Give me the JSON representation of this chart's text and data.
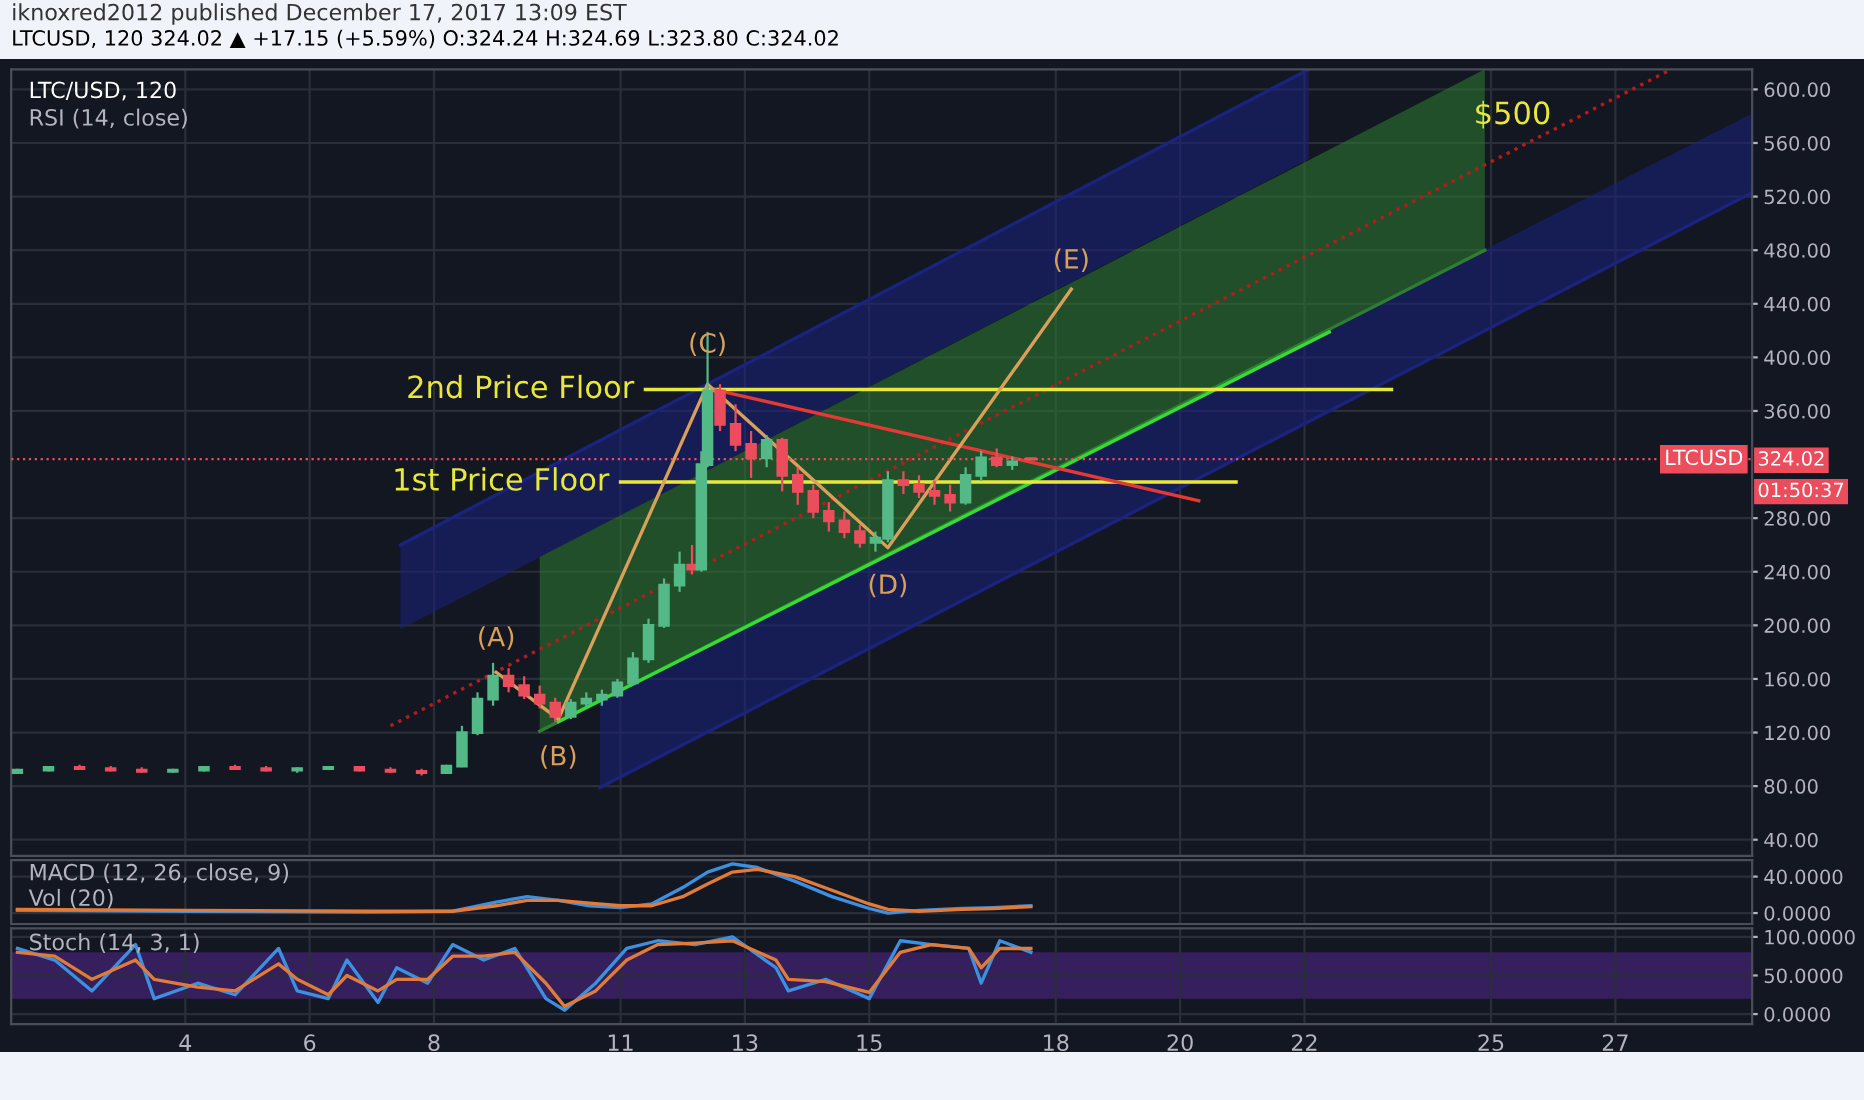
{
  "chart_data": [
    {
      "type": "candlestick",
      "title": "iknoxred2012 published December 17, 2017 13:09 EST",
      "subtitle": "LTCUSD, 120 324.02 ▲ +17.15 (+5.59%) O:324.24 H:324.69 L:323.80 C:324.02",
      "x": [
        1.3,
        1.8,
        2.3,
        2.8,
        3.3,
        3.8,
        4.3,
        4.8,
        5.3,
        5.8,
        6.3,
        6.8,
        7.3,
        7.8,
        8.2,
        8.45,
        8.7,
        8.95,
        9.2,
        9.45,
        9.7,
        9.95,
        10.2,
        10.45,
        10.7,
        10.95,
        11.2,
        11.45,
        11.7,
        11.95,
        12.15,
        12.3,
        12.4,
        12.6,
        12.85,
        13.1,
        13.35,
        13.6,
        13.85,
        14.1,
        14.35,
        14.6,
        14.85,
        15.1,
        15.3,
        15.55,
        15.8,
        16.05,
        16.3,
        16.55,
        16.8,
        17.05,
        17.3,
        17.6
      ],
      "ohlc": [
        [
          90,
          93,
          89,
          92
        ],
        [
          92,
          95,
          91,
          94
        ],
        [
          94,
          96,
          92,
          93
        ],
        [
          93,
          95,
          91,
          92
        ],
        [
          92,
          94,
          90,
          91
        ],
        [
          91,
          93,
          90,
          92
        ],
        [
          92,
          95,
          91,
          94
        ],
        [
          94,
          96,
          92,
          93
        ],
        [
          93,
          95,
          91,
          92
        ],
        [
          92,
          94,
          90,
          93
        ],
        [
          93,
          95,
          92,
          94
        ],
        [
          94,
          95,
          91,
          92
        ],
        [
          92,
          94,
          90,
          91
        ],
        [
          91,
          93,
          88,
          90
        ],
        [
          90,
          96,
          89,
          95
        ],
        [
          95,
          125,
          94,
          120
        ],
        [
          120,
          150,
          118,
          145
        ],
        [
          145,
          172,
          140,
          162
        ],
        [
          162,
          168,
          150,
          155
        ],
        [
          155,
          162,
          145,
          148
        ],
        [
          148,
          155,
          138,
          142
        ],
        [
          142,
          146,
          128,
          132
        ],
        [
          132,
          145,
          130,
          142
        ],
        [
          142,
          150,
          138,
          145
        ],
        [
          145,
          152,
          140,
          148
        ],
        [
          148,
          160,
          146,
          157
        ],
        [
          157,
          180,
          155,
          175
        ],
        [
          175,
          205,
          172,
          200
        ],
        [
          200,
          235,
          198,
          230
        ],
        [
          230,
          255,
          225,
          245
        ],
        [
          245,
          260,
          238,
          242
        ],
        [
          242,
          330,
          240,
          320
        ],
        [
          320,
          419,
          318,
          375
        ],
        [
          375,
          380,
          345,
          350
        ],
        [
          350,
          365,
          330,
          335
        ],
        [
          335,
          345,
          310,
          325
        ],
        [
          325,
          342,
          318,
          338
        ],
        [
          338,
          340,
          300,
          312
        ],
        [
          312,
          318,
          290,
          300
        ],
        [
          300,
          305,
          280,
          285
        ],
        [
          285,
          292,
          270,
          278
        ],
        [
          278,
          285,
          265,
          270
        ],
        [
          270,
          275,
          258,
          262
        ],
        [
          262,
          270,
          255,
          265
        ],
        [
          265,
          315,
          262,
          308
        ],
        [
          308,
          315,
          298,
          305
        ],
        [
          305,
          312,
          295,
          300
        ],
        [
          300,
          308,
          290,
          297
        ],
        [
          297,
          305,
          285,
          292
        ],
        [
          292,
          318,
          290,
          312
        ],
        [
          312,
          330,
          308,
          325
        ],
        [
          325,
          332,
          318,
          320
        ],
        [
          320,
          326,
          316,
          322
        ],
        [
          324.24,
          324.69,
          323.8,
          324.02
        ]
      ],
      "colors": [
        "#53b987",
        "#53b987",
        "#eb4d5c",
        "#eb4d5c",
        "#eb4d5c",
        "#53b987",
        "#53b987",
        "#eb4d5c",
        "#eb4d5c",
        "#53b987",
        "#53b987",
        "#eb4d5c",
        "#eb4d5c",
        "#eb4d5c",
        "#53b987",
        "#53b987",
        "#53b987",
        "#53b987",
        "#eb4d5c",
        "#eb4d5c",
        "#eb4d5c",
        "#eb4d5c",
        "#53b987",
        "#53b987",
        "#53b987",
        "#53b987",
        "#53b987",
        "#53b987",
        "#53b987",
        "#53b987",
        "#eb4d5c",
        "#53b987",
        "#53b987",
        "#eb4d5c",
        "#eb4d5c",
        "#eb4d5c",
        "#53b987",
        "#eb4d5c",
        "#eb4d5c",
        "#eb4d5c",
        "#eb4d5c",
        "#eb4d5c",
        "#eb4d5c",
        "#53b987",
        "#53b987",
        "#eb4d5c",
        "#eb4d5c",
        "#eb4d5c",
        "#eb4d5c",
        "#53b987",
        "#53b987",
        "#eb4d5c",
        "#53b987",
        "#eb4d5c"
      ],
      "series": [
        {
          "type": "line",
          "color": "#1a237e",
          "x": [
            7.46,
            22.07
          ],
          "values": [
            260,
            615
          ],
          "lower": [
            197,
            548
          ],
          "upper": [
            260,
            615
          ]
        },
        {
          "type": "line",
          "color": "#1a237e",
          "x": [
            10.67,
            29.2
          ],
          "values": [
            79,
            523
          ],
          "lower": [
            79,
            523
          ],
          "upper": [
            144,
            582
          ]
        },
        {
          "type": "line",
          "color": "#2e7d32",
          "x": [
            9.7,
            24.9
          ],
          "values": [
            121,
            480
          ],
          "lower": [
            121,
            480
          ],
          "upper": [
            251,
            615
          ]
        },
        {
          "type": "line",
          "color": "#b71c1c",
          "x": [
            7.3,
            27.9
          ],
          "values": [
            125,
            615
          ],
          "line_style": "dotted"
        },
        {
          "type": "line",
          "color": "#33dd33",
          "x": [
            10.0,
            22.4
          ],
          "values": [
            128,
            419
          ]
        },
        {
          "type": "line",
          "color": "#e8e83a",
          "x": [
            11.4,
            23.4
          ],
          "values": [
            376,
            376
          ]
        },
        {
          "type": "line",
          "color": "#e8e83a",
          "x": [
            11.0,
            20.9
          ],
          "values": [
            307,
            307
          ]
        },
        {
          "type": "line",
          "color": "#e53935",
          "x": [
            12.5,
            20.3
          ],
          "values": [
            376,
            293
          ]
        },
        {
          "type": "line",
          "color": "#d9a05b",
          "x": [
            9.0,
            10.0,
            12.4,
            15.3,
            18.25
          ],
          "values": [
            165,
            130,
            380,
            258,
            451
          ]
        }
      ],
      "ref_lines": [
        {
          "axis": "y",
          "value": 324.02,
          "label": "LTCUSD",
          "color": "#eb4d5c",
          "line_style": "dotted"
        }
      ],
      "annotations": [
        "LTC/USD, 120",
        "RSI (14, close)",
        "01:50:37",
        "324.02",
        "$500",
        {
          "text": "(A)",
          "x": 9.0,
          "y": 165
        },
        {
          "text": "(B)",
          "x": 10.0,
          "y": 130
        },
        {
          "text": "(C)",
          "x": 12.4,
          "y": 380
        },
        {
          "text": "(D)",
          "x": 15.3,
          "y": 258
        },
        {
          "text": "(E)",
          "x": 18.25,
          "y": 451
        },
        {
          "text": "2nd Price Floor",
          "x": 11.4,
          "y": 376
        },
        {
          "text": "1st Price Floor",
          "x": 11.0,
          "y": 307
        }
      ],
      "xlim": [
        1.2,
        29.2
      ],
      "ylim": [
        28,
        615
      ],
      "yticks": [
        {
          "value": 40,
          "label": "40.00"
        },
        {
          "value": 80,
          "label": "80.00"
        },
        {
          "value": 120,
          "label": "120.00"
        },
        {
          "value": 160,
          "label": "160.00"
        },
        {
          "value": 200,
          "label": "200.00"
        },
        {
          "value": 240,
          "label": "240.00"
        },
        {
          "value": 280,
          "label": "280.00"
        },
        {
          "value": 360,
          "label": "360.00"
        },
        {
          "value": 400,
          "label": "400.00"
        },
        {
          "value": 440,
          "label": "440.00"
        },
        {
          "value": 480,
          "label": "480.00"
        },
        {
          "value": 520,
          "label": "520.00"
        },
        {
          "value": 560,
          "label": "560.00"
        },
        {
          "value": 600,
          "label": "600.00"
        }
      ],
      "xticks": [
        4,
        6,
        8,
        11,
        13,
        15,
        18,
        20,
        22,
        25,
        27
      ],
      "tick_labels": "y",
      "grid": true,
      "legend": false,
      "marker": "none"
    },
    {
      "type": "line",
      "title": "MACD (12, 26, close, 9)",
      "annotations": [
        "Vol (20)"
      ],
      "x": [
        1.3,
        4,
        7,
        8.3,
        9.0,
        9.5,
        10.0,
        10.5,
        11.0,
        11.5,
        12.0,
        12.4,
        12.8,
        13.2,
        13.8,
        14.4,
        15.0,
        15.3,
        15.8,
        16.5,
        17.0,
        17.6
      ],
      "series": [
        {
          "color": "#3d8fe0",
          "values": [
            3,
            2,
            1,
            2,
            12,
            18,
            14,
            8,
            6,
            10,
            28,
            45,
            54,
            50,
            35,
            18,
            5,
            0,
            3,
            5,
            6,
            8
          ]
        },
        {
          "color": "#e07b39",
          "values": [
            4,
            3,
            2,
            2,
            8,
            14,
            14,
            11,
            8,
            8,
            18,
            32,
            45,
            48,
            40,
            25,
            10,
            4,
            2,
            4,
            5,
            7
          ]
        }
      ],
      "xlim": [
        1.2,
        29.2
      ],
      "ylim": [
        -12,
        58
      ],
      "xticks": [
        4,
        6,
        8,
        11,
        13,
        15,
        18,
        20,
        22,
        25,
        27
      ],
      "yticks": [
        {
          "value": 0,
          "label": "0.0000"
        },
        {
          "value": 40,
          "label": "40.0000"
        }
      ],
      "tick_labels": "y",
      "grid": true,
      "legend": false,
      "marker": "none"
    },
    {
      "type": "line",
      "title": "Stoch (14, 3, 1)",
      "x": [
        1.3,
        1.9,
        2.5,
        3.2,
        3.5,
        4.2,
        4.8,
        5.5,
        5.8,
        6.3,
        6.6,
        7.1,
        7.4,
        7.9,
        8.3,
        8.8,
        9.3,
        9.8,
        10.1,
        10.6,
        11.1,
        11.6,
        12.2,
        12.8,
        13.5,
        13.7,
        14.3,
        15.0,
        15.5,
        16.0,
        16.6,
        16.8,
        17.1,
        17.6
      ],
      "series": [
        {
          "color": "#3d8fe0",
          "values": [
            85,
            70,
            30,
            90,
            20,
            40,
            25,
            85,
            30,
            20,
            70,
            15,
            60,
            40,
            90,
            70,
            85,
            20,
            5,
            40,
            85,
            95,
            90,
            100,
            60,
            30,
            45,
            20,
            95,
            90,
            85,
            40,
            95,
            80
          ]
        },
        {
          "color": "#e07b39",
          "values": [
            80,
            75,
            45,
            70,
            45,
            35,
            30,
            65,
            45,
            25,
            50,
            30,
            45,
            45,
            75,
            75,
            80,
            40,
            10,
            30,
            70,
            90,
            92,
            95,
            70,
            45,
            42,
            28,
            80,
            90,
            85,
            60,
            85,
            85
          ]
        }
      ],
      "bands": [
        {
          "axis": "y",
          "from": 20,
          "to": 80,
          "color": "#3a2063"
        }
      ],
      "xlim": [
        1.2,
        29.2
      ],
      "ylim": [
        -13,
        111
      ],
      "xticks": [
        4,
        6,
        8,
        11,
        13,
        15,
        18,
        20,
        22,
        25,
        27
      ],
      "yticks": [
        {
          "value": 0,
          "label": "0.0000"
        },
        {
          "value": 50,
          "label": "50.0000"
        },
        {
          "value": 100,
          "label": "100.0000"
        }
      ],
      "grid": true,
      "legend": false,
      "marker": "none"
    }
  ]
}
